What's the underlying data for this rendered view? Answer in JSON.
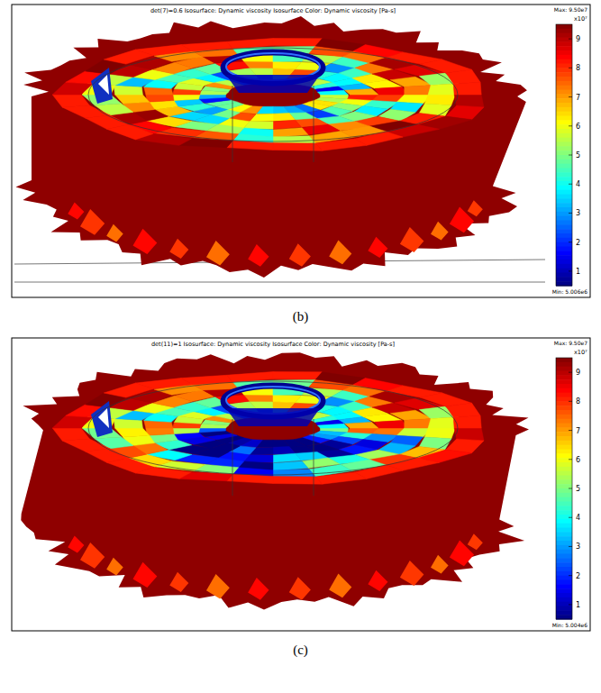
{
  "chart_data": [
    {
      "type": "isosurface",
      "title": "det(7)=0.6   Isosurface: Dynamic viscosity   Isosurface Color: Dynamic viscosity [Pa-s]",
      "caption": "(b)",
      "colorbar": {
        "range": [
          5006000,
          95000000
        ],
        "ticks": [
          {
            "value": 10000000,
            "label": "1"
          },
          {
            "value": 20000000,
            "label": "2"
          },
          {
            "value": 30000000,
            "label": "3"
          },
          {
            "value": 40000000,
            "label": "4"
          },
          {
            "value": 50000000,
            "label": "5"
          },
          {
            "value": 60000000,
            "label": "6"
          },
          {
            "value": 70000000,
            "label": "7"
          },
          {
            "value": 80000000,
            "label": "8"
          },
          {
            "value": 90000000,
            "label": "9"
          }
        ],
        "exponent": "x10⁷",
        "max_label": "Max: 9.50e7",
        "min_label": "Min: 5.006e6"
      }
    },
    {
      "type": "isosurface",
      "title": "det(11)=1   Isosurface: Dynamic viscosity   Isosurface Color: Dynamic viscosity [Pa-s]",
      "caption": "(c)",
      "colorbar": {
        "range": [
          5004000,
          95000000
        ],
        "ticks": [
          {
            "value": 10000000,
            "label": "1"
          },
          {
            "value": 20000000,
            "label": "2"
          },
          {
            "value": 30000000,
            "label": "3"
          },
          {
            "value": 40000000,
            "label": "4"
          },
          {
            "value": 50000000,
            "label": "5"
          },
          {
            "value": 60000000,
            "label": "6"
          },
          {
            "value": 70000000,
            "label": "7"
          },
          {
            "value": 80000000,
            "label": "8"
          },
          {
            "value": 90000000,
            "label": "9"
          }
        ],
        "exponent": "x10⁷",
        "max_label": "Max: 9.50e7",
        "min_label": "Min: 5.004e6"
      }
    }
  ]
}
